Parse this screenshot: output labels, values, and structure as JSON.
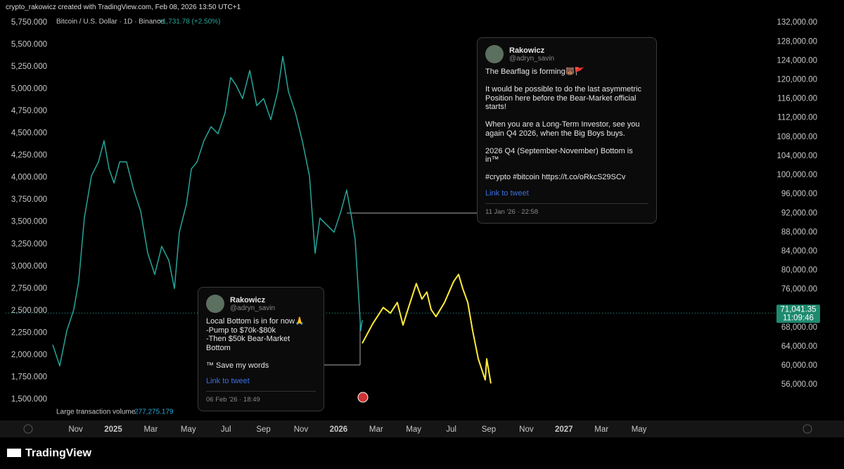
{
  "header": {
    "caption": "crypto_rakowicz created with TradingView.com, Feb 08, 2026 13:50 UTC+1",
    "change": "+1,731.78 (+2.50%)"
  },
  "chart_data": {
    "type": "line",
    "xlim": [
      -5.73,
      35.17
    ],
    "xticks": [
      {
        "value": -2,
        "label": "Nov"
      },
      {
        "value": 0,
        "label": "2025"
      },
      {
        "value": 2,
        "label": "Mar"
      },
      {
        "value": 4,
        "label": "May"
      },
      {
        "value": 6,
        "label": "Jul"
      },
      {
        "value": 8,
        "label": "Sep"
      },
      {
        "value": 10,
        "label": "Nov"
      },
      {
        "value": 12,
        "label": "2026"
      },
      {
        "value": 14,
        "label": "Mar"
      },
      {
        "value": 16,
        "label": "May"
      },
      {
        "value": 18,
        "label": "Jul"
      },
      {
        "value": 20,
        "label": "Sep"
      },
      {
        "value": 22,
        "label": "Nov"
      },
      {
        "value": 24,
        "label": "2027"
      },
      {
        "value": 26,
        "label": "Mar"
      },
      {
        "value": 28,
        "label": "May"
      }
    ],
    "ylim": [
      51900,
      133500
    ],
    "yticks": [
      {
        "value": 56000,
        "label": "56,000.00"
      },
      {
        "value": 60000,
        "label": "60,000.00"
      },
      {
        "value": 64000,
        "label": "64,000.00"
      },
      {
        "value": 68000,
        "label": "68,000.00"
      },
      {
        "value": 72000,
        "label": "72,000.00"
      },
      {
        "value": 76000,
        "label": "76,000.00"
      },
      {
        "value": 80000,
        "label": "80,000.00"
      },
      {
        "value": 84000,
        "label": "84,000.00"
      },
      {
        "value": 88000,
        "label": "88,000.00"
      },
      {
        "value": 92000,
        "label": "92,000.00"
      },
      {
        "value": 96000,
        "label": "96,000.00"
      },
      {
        "value": 100000,
        "label": "100,000.00"
      },
      {
        "value": 104000,
        "label": "104,000.00"
      },
      {
        "value": 108000,
        "label": "108,000.00"
      },
      {
        "value": 112000,
        "label": "112,000.00"
      },
      {
        "value": 116000,
        "label": "116,000.00"
      },
      {
        "value": 120000,
        "label": "120,000.00"
      },
      {
        "value": 124000,
        "label": "124,000.00"
      },
      {
        "value": 128000,
        "label": "128,000.00"
      },
      {
        "value": 132000,
        "label": "132,000.00"
      }
    ],
    "y2lim": [
      1444,
      5829
    ],
    "y2ticks": [
      {
        "value": 1500,
        "label": "1,500.000"
      },
      {
        "value": 1750,
        "label": "1,750.000"
      },
      {
        "value": 2000,
        "label": "2,000.000"
      },
      {
        "value": 2250,
        "label": "2,250.000"
      },
      {
        "value": 2500,
        "label": "2,500.000"
      },
      {
        "value": 2750,
        "label": "2,750.000"
      },
      {
        "value": 3000,
        "label": "3,000.000"
      },
      {
        "value": 3250,
        "label": "3,250.000"
      },
      {
        "value": 3500,
        "label": "3,500.000"
      },
      {
        "value": 3750,
        "label": "3,750.000"
      },
      {
        "value": 4000,
        "label": "4,000.000"
      },
      {
        "value": 4250,
        "label": "4,250.000"
      },
      {
        "value": 4500,
        "label": "4,500.000"
      },
      {
        "value": 4750,
        "label": "4,750.000"
      },
      {
        "value": 5000,
        "label": "5,000.000"
      },
      {
        "value": 5250,
        "label": "5,250.000"
      },
      {
        "value": 5500,
        "label": "5,500.000"
      },
      {
        "value": 5750,
        "label": "5,750.000"
      }
    ],
    "series": [
      {
        "name": "Bitcoin / U.S. Dollar · 1D · Binance",
        "color": "#26a69a",
        "x": [
          -3.22,
          -2.85,
          -2.47,
          -2.1,
          -1.84,
          -1.54,
          -1.16,
          -0.79,
          -0.49,
          -0.22,
          0.04,
          0.34,
          0.71,
          1.09,
          1.46,
          1.84,
          2.21,
          2.58,
          2.96,
          3.26,
          3.52,
          3.9,
          4.16,
          4.46,
          4.83,
          5.21,
          5.58,
          5.96,
          6.25,
          6.52,
          6.89,
          7.27,
          7.64,
          8.01,
          8.39,
          8.76,
          9.03,
          9.33,
          9.7,
          10.07,
          10.45,
          10.75,
          11.01,
          11.39,
          11.76,
          12.13,
          12.43,
          12.7,
          12.88,
          13.07,
          13.18,
          13.26
        ],
        "values": [
          64400,
          59970,
          67350,
          71780,
          77680,
          90970,
          99820,
          102770,
          107200,
          101300,
          98350,
          102770,
          102770,
          96870,
          92440,
          83590,
          79160,
          85060,
          82110,
          76210,
          88020,
          93920,
          101300,
          102770,
          107200,
          110150,
          108680,
          113110,
          120490,
          119010,
          116060,
          121960,
          114580,
          116060,
          111630,
          117540,
          124920,
          117540,
          113110,
          107200,
          99820,
          83590,
          90970,
          89490,
          88020,
          92440,
          96870,
          90970,
          86540,
          74730,
          67350,
          69560
        ]
      },
      {
        "color": "#ffeb3b",
        "x": [
          13.26,
          13.82,
          14.38,
          14.76,
          15.13,
          15.43,
          15.69,
          16.14,
          16.44,
          16.7,
          16.93,
          17.19,
          17.64,
          18.13,
          18.39,
          18.61,
          18.88,
          19.14,
          19.44,
          19.81,
          19.89,
          20.11
        ],
        "values": [
          64700,
          68830,
          72220,
          71040,
          73260,
          68530,
          71780,
          77240,
          73990,
          75470,
          71780,
          70300,
          73260,
          77680,
          79160,
          76210,
          73260,
          67350,
          61450,
          57020,
          61450,
          56280
        ]
      }
    ],
    "last_price": {
      "value": 71041.35,
      "label": "71,041.35"
    },
    "countdown": "11:09:46",
    "indicator": {
      "name": "Large transaction volume",
      "value_label": "277,275.179"
    }
  },
  "tweets": [
    {
      "name": "Rakowicz",
      "handle": "@adryn_savin",
      "lines": [
        "The Bearflag is forming🐻🚩",
        "",
        "It would be possible to do the last asymmetric",
        "Position here before the Bear-Market official",
        "starts!",
        "",
        "When you are a Long-Term Investor, see you",
        "again Q4 2026, when the Big Boys buys.",
        "",
        "2026 Q4 (September-November) Bottom is in™",
        "",
        "#crypto #bitcoin https://t.co/oRkcS29SCv"
      ],
      "link": "Link to tweet",
      "date": "11 Jan '26 · 22:58"
    },
    {
      "name": "Rakowicz",
      "handle": "@adryn_savin",
      "lines": [
        "Local Bottom is in for now🙏",
        "-Pump to $70k-$80k",
        "-Then $50k Bear-Market Bottom",
        "",
        "™ Save my words"
      ],
      "link": "Link to tweet",
      "date": "06 Feb '26 · 18:49"
    }
  ],
  "footer": {
    "logo": "TradingView"
  }
}
